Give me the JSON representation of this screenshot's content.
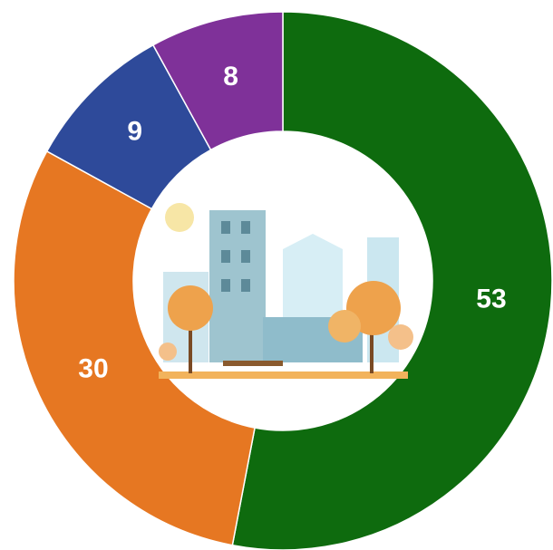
{
  "chart_data": {
    "type": "donut",
    "values": [
      53,
      30,
      9,
      8
    ],
    "colors": [
      "#0e6b0e",
      "#e67722",
      "#2e4a9a",
      "#7f3199"
    ]
  }
}
